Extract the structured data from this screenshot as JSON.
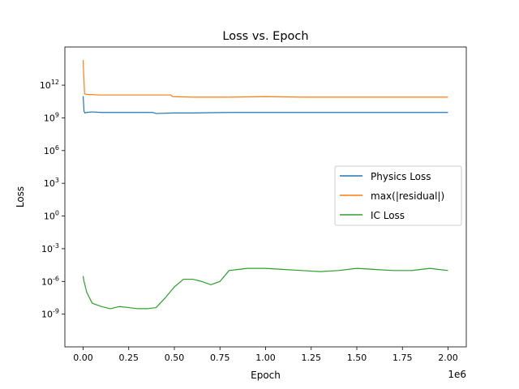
{
  "chart_data": {
    "type": "line",
    "title": "Loss vs. Epoch",
    "xlabel": "Epoch",
    "ylabel": "Loss",
    "x_offset_label": "1e6",
    "xlim": [
      -100000,
      2100000
    ],
    "x_ticks": [
      0,
      0.25,
      0.5,
      0.75,
      1.0,
      1.25,
      1.5,
      1.75,
      2.0
    ],
    "x_tick_labels": [
      "0.00",
      "0.25",
      "0.50",
      "0.75",
      "1.00",
      "1.25",
      "1.50",
      "1.75",
      "2.00"
    ],
    "y_scale": "log",
    "ylim_log10": [
      -12,
      15.5
    ],
    "y_ticks_log10": [
      -9,
      -6,
      -3,
      0,
      3,
      6,
      9,
      12
    ],
    "y_tick_labels": [
      "10^-9",
      "10^-6",
      "10^-3",
      "10^0",
      "10^3",
      "10^6",
      "10^9",
      "10^12"
    ],
    "grid": false,
    "legend_position": "center-right",
    "series": [
      {
        "name": "Physics Loss",
        "color": "#1f77b4",
        "x": [
          0,
          5000,
          10000,
          20000,
          50000,
          100000,
          200000,
          300000,
          380000,
          400000,
          500000,
          600000,
          800000,
          1000000,
          1200000,
          1400000,
          1600000,
          1800000,
          2000000
        ],
        "y_log10": [
          11.0,
          9.6,
          9.45,
          9.5,
          9.55,
          9.5,
          9.5,
          9.5,
          9.5,
          9.4,
          9.45,
          9.45,
          9.5,
          9.5,
          9.5,
          9.5,
          9.5,
          9.5,
          9.5
        ]
      },
      {
        "name": "max(|residual|)",
        "color": "#ff7f0e",
        "x": [
          0,
          3000,
          8000,
          20000,
          100000,
          200000,
          300000,
          400000,
          480000,
          490000,
          600000,
          800000,
          1000000,
          1200000,
          1400000,
          1600000,
          1800000,
          2000000
        ],
        "y_log10": [
          14.3,
          13.0,
          11.2,
          11.15,
          11.1,
          11.1,
          11.1,
          11.1,
          11.1,
          10.95,
          10.9,
          10.9,
          10.95,
          10.9,
          10.9,
          10.9,
          10.9,
          10.9
        ]
      },
      {
        "name": "IC Loss",
        "color": "#2ca02c",
        "x": [
          0,
          5000,
          20000,
          50000,
          100000,
          150000,
          200000,
          250000,
          300000,
          350000,
          400000,
          450000,
          500000,
          550000,
          600000,
          650000,
          700000,
          750000,
          800000,
          850000,
          900000,
          950000,
          1000000,
          1100000,
          1200000,
          1300000,
          1400000,
          1500000,
          1600000,
          1700000,
          1800000,
          1900000,
          2000000
        ],
        "y_log10": [
          -5.5,
          -6.0,
          -7.0,
          -8.0,
          -8.3,
          -8.5,
          -8.3,
          -8.4,
          -8.5,
          -8.5,
          -8.4,
          -7.5,
          -6.5,
          -5.8,
          -5.8,
          -6.0,
          -6.3,
          -6.0,
          -5.0,
          -4.9,
          -4.8,
          -4.8,
          -4.8,
          -4.9,
          -5.0,
          -5.1,
          -5.0,
          -4.8,
          -4.9,
          -5.0,
          -5.0,
          -4.8,
          -5.0
        ]
      }
    ]
  }
}
